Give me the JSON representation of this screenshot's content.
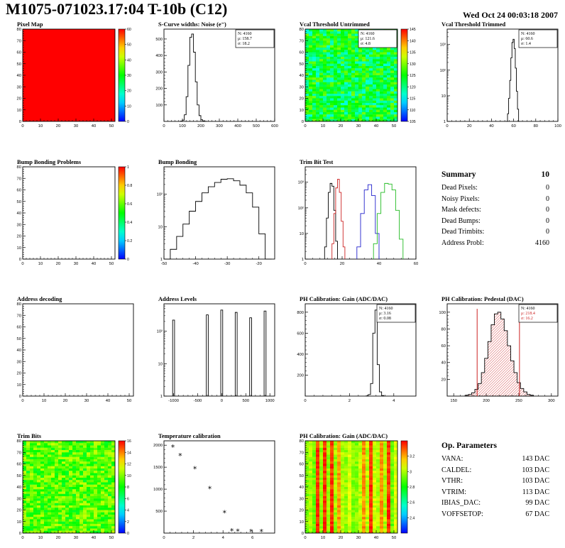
{
  "header": {
    "title": "M1075-071023.17:04 T-10b (C12)",
    "date": "Wed Oct 24 00:03:18 2007"
  },
  "chart_data": [
    {
      "id": "pixel-map",
      "type": "heatmap",
      "fill": "uniform",
      "title": "Pixel Map",
      "xlim": [
        0,
        52
      ],
      "ylim": [
        0,
        80
      ],
      "xticks": [
        0,
        10,
        20,
        30,
        40,
        50
      ],
      "yticks": [
        0,
        10,
        20,
        30,
        40,
        50,
        60,
        70,
        80
      ],
      "colorbar": {
        "min": 0,
        "max": 60,
        "ticks": [
          0,
          10,
          20,
          30,
          40,
          50,
          60
        ]
      }
    },
    {
      "id": "scurve-noise",
      "type": "hist",
      "title": "S-Curve widths: Noise (e⁻)",
      "x": [
        95,
        105,
        115,
        125,
        135,
        145,
        155,
        165,
        175,
        185,
        195,
        205,
        215,
        225
      ],
      "y": [
        2,
        8,
        40,
        150,
        340,
        510,
        530,
        420,
        240,
        100,
        35,
        10,
        3,
        1
      ],
      "xlim": [
        0,
        600
      ],
      "xticks": [
        0,
        100,
        200,
        300,
        400,
        500,
        600
      ],
      "ylim": [
        0,
        560
      ],
      "yticks": [
        100,
        200,
        300,
        400,
        500
      ],
      "stats": [
        {
          "t": "N: 4160"
        },
        {
          "t": "μ: 158.7"
        },
        {
          "t": "σ: 18.2"
        }
      ]
    },
    {
      "id": "vcal-untrimmed",
      "type": "heatmap",
      "fill": "noise",
      "title": "Vcal Threshold Untrimmed",
      "noise": {
        "mean": 0.45,
        "spread": 0.17,
        "seed": 7
      },
      "xlim": [
        0,
        52
      ],
      "ylim": [
        0,
        80
      ],
      "xticks": [
        0,
        10,
        20,
        30,
        40,
        50
      ],
      "yticks": [
        0,
        10,
        20,
        30,
        40,
        50,
        60,
        70,
        80
      ],
      "colorbar": {
        "min": 105,
        "max": 145,
        "ticks": [
          105,
          110,
          115,
          120,
          125,
          130,
          135,
          140,
          145
        ]
      },
      "stats": [
        {
          "t": "N: 4160"
        },
        {
          "t": "μ: 121.6"
        },
        {
          "t": "σ: 4.8"
        }
      ]
    },
    {
      "id": "vcal-trimmed",
      "type": "hist",
      "log": true,
      "title": "Vcal Threshold Trimmed",
      "x": [
        54,
        55,
        56,
        57,
        58,
        59,
        60,
        61,
        62,
        63,
        64,
        65
      ],
      "y": [
        0,
        2,
        8,
        40,
        300,
        1200,
        1600,
        700,
        120,
        15,
        3,
        1
      ],
      "xlim": [
        0,
        100
      ],
      "xticks": [
        0,
        20,
        40,
        60,
        80,
        100
      ],
      "ylim": [
        1,
        4000
      ],
      "stats": [
        {
          "t": "N: 4160"
        },
        {
          "t": "μ: 60.6"
        },
        {
          "t": "σ: 1.4"
        }
      ]
    },
    {
      "id": "bump-problems",
      "type": "empty",
      "title": "Bump Bonding Problems",
      "xlim": [
        0,
        52
      ],
      "ylim": [
        0,
        80
      ],
      "xticks": [
        0,
        10,
        20,
        30,
        40,
        50
      ],
      "yticks": [
        0,
        10,
        20,
        30,
        40,
        50,
        60,
        70,
        80
      ],
      "colorbar": {
        "min": 0,
        "max": 1,
        "ticks": [
          0,
          0.2,
          0.4,
          0.6,
          0.8,
          1
        ]
      }
    },
    {
      "id": "bump-bonding",
      "type": "hist",
      "log": true,
      "title": "Bump Bonding",
      "x": [
        -49,
        -47,
        -45,
        -43,
        -41,
        -39,
        -37,
        -35,
        -33,
        -31,
        -29,
        -27,
        -25,
        -23,
        -21,
        -19,
        -17
      ],
      "y": [
        1,
        2,
        5,
        12,
        30,
        60,
        110,
        170,
        230,
        290,
        300,
        260,
        190,
        110,
        40,
        6,
        1
      ],
      "xlim": [
        -50,
        -15
      ],
      "xticks": [
        -50,
        -40,
        -30,
        -20
      ],
      "ylim": [
        1,
        700
      ]
    },
    {
      "id": "trim-bit-test",
      "type": "multihist",
      "log": true,
      "title": "Trim Bit Test",
      "series": [
        {
          "name": "trim-14",
          "color": "#000000",
          "x": [
            11,
            12,
            13,
            14,
            15,
            16,
            17
          ],
          "y": [
            3,
            40,
            400,
            900,
            700,
            80,
            5
          ]
        },
        {
          "name": "trim-13",
          "color": "#cc2222",
          "x": [
            15,
            16,
            17,
            18,
            19,
            20,
            21
          ],
          "y": [
            4,
            60,
            600,
            1300,
            400,
            30,
            3
          ]
        },
        {
          "name": "trim-11",
          "color": "#2222cc",
          "x": [
            29,
            31,
            33,
            35,
            37,
            39
          ],
          "y": [
            3,
            60,
            500,
            800,
            300,
            10
          ]
        },
        {
          "name": "trim-7",
          "color": "#22bb22",
          "x": [
            38,
            40,
            42,
            44,
            46,
            48,
            50,
            52
          ],
          "y": [
            4,
            60,
            400,
            900,
            850,
            500,
            80,
            6
          ]
        }
      ],
      "xlim": [
        0,
        60
      ],
      "xticks": [
        0,
        20,
        40,
        60
      ],
      "ylim": [
        1,
        4000
      ]
    },
    {
      "id": "summary",
      "type": "table",
      "title": "Summary",
      "title_value": "10",
      "rows": [
        [
          "Dead Pixels:",
          "0"
        ],
        [
          "Noisy Pixels:",
          "0"
        ],
        [
          "Mask defects:",
          "0"
        ],
        [
          "Dead Bumps:",
          "0"
        ],
        [
          "Dead Trimbits:",
          "0"
        ],
        [
          "Address Probl:",
          "4160"
        ]
      ]
    },
    {
      "id": "address-decoding",
      "type": "empty",
      "title": "Address decoding",
      "xlim": [
        0,
        52
      ],
      "ylim": [
        0,
        80
      ],
      "xticks": [
        0,
        10,
        20,
        30,
        40,
        50
      ],
      "yticks": [
        0,
        10,
        20,
        30,
        40,
        50,
        60,
        70,
        80
      ]
    },
    {
      "id": "address-levels",
      "type": "spikes",
      "log": true,
      "title": "Address Levels",
      "binwidth": 40,
      "x": [
        -1000,
        -300,
        0,
        300,
        600,
        900
      ],
      "y": [
        220,
        320,
        450,
        380,
        260,
        420
      ],
      "xlim": [
        -1200,
        1100
      ],
      "xticks": [
        -1000,
        -500,
        0,
        500,
        1000
      ],
      "ylim": [
        1,
        700
      ]
    },
    {
      "id": "ph-gain-hist",
      "type": "hist",
      "title": "PH Calibration: Gain (ADC/DAC)",
      "x": [
        2.8,
        2.9,
        3.0,
        3.1,
        3.2,
        3.3,
        3.4,
        3.5
      ],
      "y": [
        2,
        15,
        120,
        600,
        820,
        300,
        40,
        5
      ],
      "xlim": [
        0,
        5
      ],
      "xticks": [
        0,
        2,
        4
      ],
      "ylim": [
        0,
        880
      ],
      "yticks": [
        200,
        400,
        600,
        800
      ],
      "stats": [
        {
          "t": "N: 4160"
        },
        {
          "t": "μ: 3.16"
        },
        {
          "t": "σ: 0.08"
        }
      ]
    },
    {
      "id": "ph-pedestal",
      "type": "hist",
      "hatch": true,
      "title": "PH Calibration: Pedestal (DAC)",
      "x": [
        170,
        175,
        180,
        185,
        190,
        195,
        200,
        205,
        210,
        215,
        220,
        225,
        230,
        235,
        240,
        245,
        250,
        255,
        260,
        265,
        270
      ],
      "y": [
        1,
        2,
        4,
        8,
        15,
        28,
        45,
        65,
        85,
        98,
        100,
        92,
        78,
        60,
        42,
        28,
        16,
        9,
        5,
        2,
        1
      ],
      "xlim": [
        140,
        310
      ],
      "xticks": [
        150,
        200,
        250,
        300
      ],
      "ylim": [
        0,
        110
      ],
      "yticks": [
        20,
        40,
        60,
        80,
        100
      ],
      "vlines": [
        {
          "x": 186,
          "y": 104
        },
        {
          "x": 251,
          "y": 104
        }
      ],
      "stats": [
        {
          "t": "N: 4160",
          "c": "#000000"
        },
        {
          "t": "μ: 218.4",
          "c": "#cc2222"
        },
        {
          "t": "σ: 16.2",
          "c": "#cc2222"
        }
      ]
    },
    {
      "id": "trim-bits",
      "type": "heatmap",
      "fill": "noise",
      "title": "Trim Bits",
      "noise": {
        "mean": 0.58,
        "spread": 0.12,
        "seed": 23
      },
      "xlim": [
        0,
        52
      ],
      "ylim": [
        0,
        80
      ],
      "xticks": [
        0,
        10,
        20,
        30,
        40,
        50
      ],
      "yticks": [
        0,
        10,
        20,
        30,
        40,
        50,
        60,
        70,
        80
      ],
      "colorbar": {
        "min": 0,
        "max": 16,
        "ticks": [
          0,
          2,
          4,
          6,
          8,
          10,
          12,
          14,
          16
        ]
      }
    },
    {
      "id": "temp-calibration",
      "type": "scatter",
      "title": "Temperature calibration",
      "marker": "*",
      "points": [
        [
          0.6,
          1950
        ],
        [
          1.1,
          1750
        ],
        [
          2.1,
          1450
        ],
        [
          3.1,
          1000
        ],
        [
          4.1,
          450
        ],
        [
          4.6,
          40
        ],
        [
          5.0,
          30
        ],
        [
          5.9,
          25
        ],
        [
          6.6,
          25
        ]
      ],
      "xlim": [
        0,
        7.5
      ],
      "xticks": [
        0,
        2,
        4,
        6
      ],
      "ylim": [
        0,
        2100
      ],
      "yticks": [
        500,
        1000,
        1500,
        2000
      ]
    },
    {
      "id": "ph-gain-map",
      "type": "heatmap",
      "fill": "stripes",
      "title": "PH Calibration: Gain (ADC/DAC)",
      "noise": {
        "seed": 99
      },
      "xlim": [
        0,
        52
      ],
      "ylim": [
        0,
        80
      ],
      "xticks": [
        0,
        10,
        20,
        30,
        40,
        50
      ],
      "yticks": [
        0,
        10,
        20,
        30,
        40,
        50,
        60,
        70,
        80
      ],
      "colorbar": {
        "min": 2.2,
        "max": 3.4,
        "ticks": [
          2.4,
          2.6,
          2.8,
          3,
          3.2
        ]
      }
    },
    {
      "id": "op-parameters",
      "type": "table",
      "title": "Op. Parameters",
      "rows": [
        [
          "VANA:",
          "143 DAC"
        ],
        [
          "CALDEL:",
          "103 DAC"
        ],
        [
          "VTHR:",
          "103 DAC"
        ],
        [
          "VTRIM:",
          "113 DAC"
        ],
        [
          "IBIAS_DAC:",
          "99 DAC"
        ],
        [
          "VOFFSETOP:",
          "67 DAC"
        ]
      ]
    }
  ]
}
